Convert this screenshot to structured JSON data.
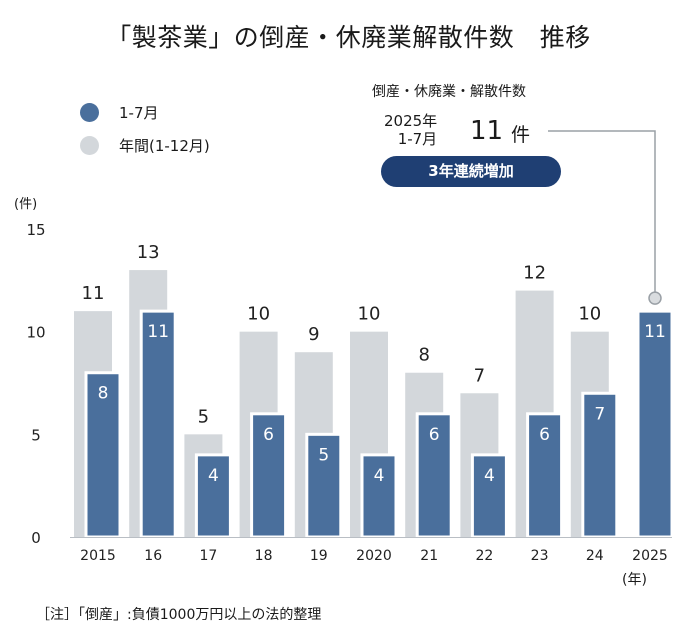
{
  "chart_data": {
    "type": "bar",
    "title": "「製茶業」の倒産・休廃業解散件数　推移",
    "categories": [
      "2015",
      "16",
      "17",
      "18",
      "19",
      "2020",
      "21",
      "22",
      "23",
      "24",
      "2025"
    ],
    "series": [
      {
        "name": "1-7月",
        "color": "#4a6f9c",
        "values": [
          8,
          11,
          4,
          6,
          5,
          4,
          6,
          4,
          6,
          7,
          11
        ]
      },
      {
        "name": "年間(1-12月)",
        "color": "#d3d7db",
        "values": [
          11,
          13,
          5,
          10,
          9,
          10,
          8,
          7,
          12,
          10,
          null
        ]
      }
    ],
    "ylim": [
      0,
      15
    ],
    "yticks": [
      0,
      5,
      10,
      15
    ],
    "ylabel": "(件)",
    "xlabel_suffix": "(年)",
    "legend_position": "top-left",
    "annotation": {
      "heading": "倒産・休廃業・解散件数",
      "period_line1": "2025年",
      "period_line2": "1-7月",
      "value": "11",
      "unit": "件",
      "badge": "3年連続増加"
    },
    "note": "［注］「倒産」:負債1000万円以上の法的整理"
  },
  "colors": {
    "partial": "#4a6f9c",
    "annual": "#d3d7db",
    "badge": "#1f3f73",
    "leader": "#9aa0a6"
  }
}
